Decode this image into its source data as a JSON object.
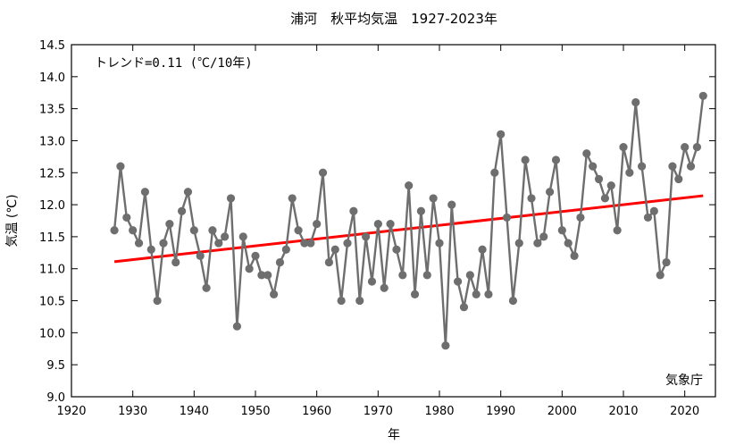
{
  "chart_data": {
    "type": "line",
    "title": "浦河　秋平均気温　1927-2023年",
    "xlabel": "年",
    "ylabel": "気温 (℃)",
    "xlim": [
      1920,
      2025
    ],
    "ylim": [
      9.0,
      14.5
    ],
    "x_ticks": [
      1920,
      1930,
      1940,
      1950,
      1960,
      1970,
      1980,
      1990,
      2000,
      2010,
      2020
    ],
    "y_ticks": [
      9.0,
      9.5,
      10.0,
      10.5,
      11.0,
      11.5,
      12.0,
      12.5,
      13.0,
      13.5,
      14.0,
      14.5
    ],
    "grid": false,
    "trend_label": "トレンド=0.11 (℃/10年)",
    "source_label": "気象庁",
    "colors": {
      "series": "#6e6e6e",
      "trend": "#ff0000",
      "axis": "#000000"
    },
    "x": [
      1927,
      1928,
      1929,
      1930,
      1931,
      1932,
      1933,
      1934,
      1935,
      1936,
      1937,
      1938,
      1939,
      1940,
      1941,
      1942,
      1943,
      1944,
      1945,
      1946,
      1947,
      1948,
      1949,
      1950,
      1951,
      1952,
      1953,
      1954,
      1955,
      1956,
      1957,
      1958,
      1959,
      1960,
      1961,
      1962,
      1963,
      1964,
      1965,
      1966,
      1967,
      1968,
      1969,
      1970,
      1971,
      1972,
      1973,
      1974,
      1975,
      1976,
      1977,
      1978,
      1979,
      1980,
      1981,
      1982,
      1983,
      1984,
      1985,
      1986,
      1987,
      1988,
      1989,
      1990,
      1991,
      1992,
      1993,
      1994,
      1995,
      1996,
      1997,
      1998,
      1999,
      2000,
      2001,
      2002,
      2003,
      2004,
      2005,
      2006,
      2007,
      2008,
      2009,
      2010,
      2011,
      2012,
      2013,
      2014,
      2015,
      2016,
      2017,
      2018,
      2019,
      2020,
      2021,
      2022,
      2023
    ],
    "series": [
      {
        "values": [
          11.6,
          12.6,
          11.8,
          11.6,
          11.4,
          12.2,
          11.3,
          10.5,
          11.4,
          11.7,
          11.1,
          11.9,
          12.2,
          11.6,
          11.2,
          10.7,
          11.6,
          11.4,
          11.5,
          12.1,
          10.1,
          11.5,
          11.0,
          11.2,
          10.9,
          10.9,
          10.6,
          11.1,
          11.3,
          12.1,
          11.6,
          11.4,
          11.4,
          11.7,
          12.5,
          11.1,
          11.3,
          10.5,
          11.4,
          11.9,
          10.5,
          11.5,
          10.8,
          11.7,
          10.7,
          11.7,
          11.3,
          10.9,
          12.3,
          10.6,
          11.9,
          10.9,
          12.1,
          11.4,
          9.8,
          12.0,
          10.8,
          10.4,
          10.9,
          10.6,
          11.3,
          10.6,
          12.5,
          13.1,
          11.8,
          10.5,
          11.4,
          12.7,
          12.1,
          11.4,
          11.5,
          12.2,
          12.7,
          11.6,
          11.4,
          11.2,
          11.8,
          12.8,
          12.6,
          12.4,
          12.1,
          12.3,
          11.6,
          12.9,
          12.5,
          13.6,
          12.6,
          11.8,
          11.9,
          10.9,
          11.1,
          12.6,
          12.4,
          12.9,
          12.6,
          12.9,
          13.7
        ]
      }
    ],
    "trend": {
      "x": [
        1927,
        2023
      ],
      "y": [
        11.11,
        12.14
      ]
    }
  }
}
